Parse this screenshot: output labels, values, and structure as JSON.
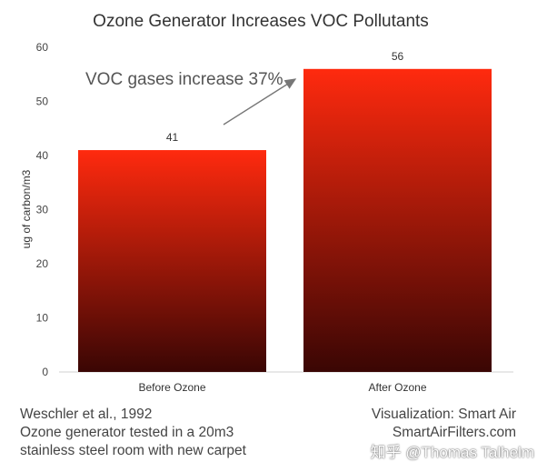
{
  "chart_data": {
    "type": "bar",
    "title": "Ozone Generator Increases VOC Pollutants",
    "ylabel": "ug of carbon/m3",
    "xlabel": "",
    "categories": [
      "Before Ozone",
      "After Ozone"
    ],
    "values": [
      41,
      56
    ],
    "data_labels": [
      "41",
      "56"
    ],
    "ylim": [
      0,
      60
    ],
    "yticks": [
      0,
      10,
      20,
      30,
      40,
      50,
      60
    ],
    "grid": false,
    "legend": "none",
    "bar_gradient": [
      "#ff2a0e",
      "#3a0604"
    ],
    "annotation": "VOC gases increase 37%"
  },
  "source_note": {
    "line1": "Weschler et al., 1992",
    "line2": "Ozone generator tested in a 20m3",
    "line3": "stainless steel room with new carpet"
  },
  "credit": {
    "line1": "Visualization: Smart Air",
    "line2": "SmartAirFilters.com"
  },
  "watermark": "知乎 @Thomas Talhelm"
}
